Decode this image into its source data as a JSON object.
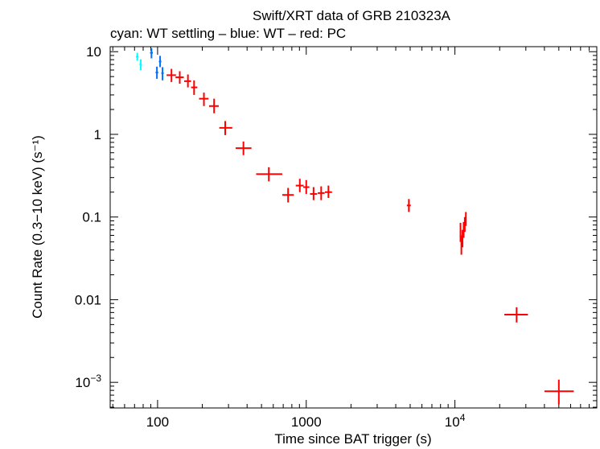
{
  "chart_data": {
    "type": "scatter",
    "title": "Swift/XRT data of GRB 210323A",
    "subtitle": "cyan: WT settling – blue: WT – red: PC",
    "xlabel": "Time since BAT trigger (s)",
    "ylabel": "Count Rate (0.3−10 keV) (s⁻¹)",
    "xscale": "log",
    "yscale": "log",
    "xlim": [
      48,
      90000
    ],
    "ylim": [
      0.00049,
      11.5
    ],
    "x_ticks": [
      {
        "value": 100,
        "label": "100"
      },
      {
        "value": 1000,
        "label": "1000"
      },
      {
        "value": 10000,
        "label": "10",
        "sup": "4"
      }
    ],
    "y_ticks": [
      {
        "value": 10,
        "label": "10"
      },
      {
        "value": 1,
        "label": "1"
      },
      {
        "value": 0.1,
        "label": "0.1"
      },
      {
        "value": 0.01,
        "label": "0.01"
      },
      {
        "value": 0.001,
        "label": "10",
        "sup": "−3"
      }
    ],
    "series": [
      {
        "name": "WT settling",
        "color": "#00ffff",
        "points": [
          {
            "x": 73,
            "xlo": 71.5,
            "xhi": 74.5,
            "y": 8.7,
            "ylo": 7.8,
            "yhi": 9.7
          },
          {
            "x": 77,
            "xlo": 75.5,
            "xhi": 78.5,
            "y": 7.0,
            "ylo": 6.0,
            "yhi": 8.1
          }
        ]
      },
      {
        "name": "WT",
        "color": "#0070ff",
        "points": [
          {
            "x": 91,
            "xlo": 89,
            "xhi": 93,
            "y": 9.7,
            "ylo": 8.3,
            "yhi": 11.0
          },
          {
            "x": 99,
            "xlo": 97,
            "xhi": 101,
            "y": 5.6,
            "ylo": 4.7,
            "yhi": 6.6
          },
          {
            "x": 104,
            "xlo": 102,
            "xhi": 106,
            "y": 7.6,
            "ylo": 6.5,
            "yhi": 8.9
          },
          {
            "x": 108,
            "xlo": 106,
            "xhi": 110,
            "y": 5.5,
            "ylo": 4.5,
            "yhi": 6.5
          }
        ]
      },
      {
        "name": "PC",
        "color": "#ff0000",
        "points": [
          {
            "x": 124,
            "xlo": 115,
            "xhi": 133,
            "y": 5.2,
            "ylo": 4.3,
            "yhi": 6.2
          },
          {
            "x": 141,
            "xlo": 132,
            "xhi": 150,
            "y": 4.9,
            "ylo": 4.1,
            "yhi": 5.8
          },
          {
            "x": 160,
            "xlo": 151,
            "xhi": 168,
            "y": 4.4,
            "ylo": 3.7,
            "yhi": 5.3
          },
          {
            "x": 176,
            "xlo": 168,
            "xhi": 185,
            "y": 3.7,
            "ylo": 3.0,
            "yhi": 4.5
          },
          {
            "x": 205,
            "xlo": 190,
            "xhi": 220,
            "y": 2.7,
            "ylo": 2.2,
            "yhi": 3.2
          },
          {
            "x": 240,
            "xlo": 222,
            "xhi": 258,
            "y": 2.2,
            "ylo": 1.8,
            "yhi": 2.7
          },
          {
            "x": 285,
            "xlo": 260,
            "xhi": 318,
            "y": 1.2,
            "ylo": 0.98,
            "yhi": 1.45
          },
          {
            "x": 378,
            "xlo": 335,
            "xhi": 428,
            "y": 0.68,
            "ylo": 0.56,
            "yhi": 0.82
          },
          {
            "x": 560,
            "xlo": 460,
            "xhi": 690,
            "y": 0.33,
            "ylo": 0.27,
            "yhi": 0.4
          },
          {
            "x": 755,
            "xlo": 690,
            "xhi": 825,
            "y": 0.185,
            "ylo": 0.15,
            "yhi": 0.225
          },
          {
            "x": 905,
            "xlo": 850,
            "xhi": 960,
            "y": 0.24,
            "ylo": 0.2,
            "yhi": 0.29
          },
          {
            "x": 1000,
            "xlo": 955,
            "xhi": 1050,
            "y": 0.23,
            "ylo": 0.19,
            "yhi": 0.28
          },
          {
            "x": 1120,
            "xlo": 1060,
            "xhi": 1185,
            "y": 0.19,
            "ylo": 0.16,
            "yhi": 0.23
          },
          {
            "x": 1260,
            "xlo": 1195,
            "xhi": 1330,
            "y": 0.195,
            "ylo": 0.16,
            "yhi": 0.235
          },
          {
            "x": 1410,
            "xlo": 1335,
            "xhi": 1490,
            "y": 0.2,
            "ylo": 0.17,
            "yhi": 0.24
          },
          {
            "x": 4900,
            "xlo": 4750,
            "xhi": 5050,
            "y": 0.138,
            "ylo": 0.115,
            "yhi": 0.165
          },
          {
            "x": 10900,
            "xlo": 10800,
            "xhi": 11000,
            "y": 0.065,
            "ylo": 0.05,
            "yhi": 0.085
          },
          {
            "x": 11050,
            "xlo": 10960,
            "xhi": 11140,
            "y": 0.047,
            "ylo": 0.035,
            "yhi": 0.06
          },
          {
            "x": 11250,
            "xlo": 11160,
            "xhi": 11340,
            "y": 0.055,
            "ylo": 0.043,
            "yhi": 0.07
          },
          {
            "x": 11450,
            "xlo": 11360,
            "xhi": 11540,
            "y": 0.07,
            "ylo": 0.056,
            "yhi": 0.087
          },
          {
            "x": 11650,
            "xlo": 11560,
            "xhi": 11740,
            "y": 0.082,
            "ylo": 0.066,
            "yhi": 0.1
          },
          {
            "x": 11850,
            "xlo": 11760,
            "xhi": 11940,
            "y": 0.095,
            "ylo": 0.078,
            "yhi": 0.115
          },
          {
            "x": 26000,
            "xlo": 21500,
            "xhi": 31000,
            "y": 0.0066,
            "ylo": 0.0053,
            "yhi": 0.0081
          },
          {
            "x": 50000,
            "xlo": 40000,
            "xhi": 63000,
            "y": 0.00078,
            "ylo": 0.00054,
            "yhi": 0.00108
          }
        ]
      }
    ]
  }
}
